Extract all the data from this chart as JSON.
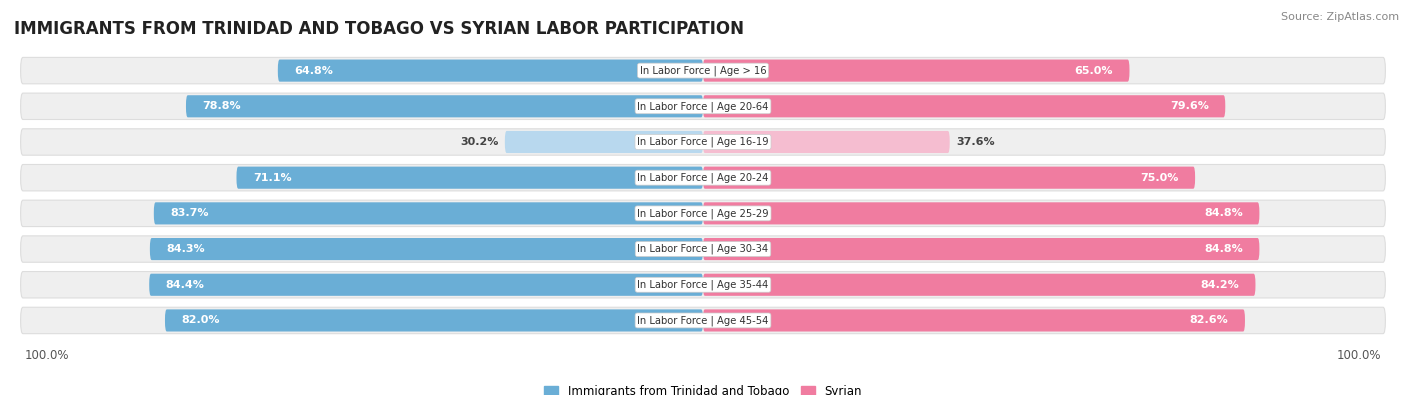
{
  "title": "IMMIGRANTS FROM TRINIDAD AND TOBAGO VS SYRIAN LABOR PARTICIPATION",
  "source": "Source: ZipAtlas.com",
  "categories": [
    "In Labor Force | Age > 16",
    "In Labor Force | Age 20-64",
    "In Labor Force | Age 16-19",
    "In Labor Force | Age 20-24",
    "In Labor Force | Age 25-29",
    "In Labor Force | Age 30-34",
    "In Labor Force | Age 35-44",
    "In Labor Force | Age 45-54"
  ],
  "trinidad_values": [
    64.8,
    78.8,
    30.2,
    71.1,
    83.7,
    84.3,
    84.4,
    82.0
  ],
  "syrian_values": [
    65.0,
    79.6,
    37.6,
    75.0,
    84.8,
    84.8,
    84.2,
    82.6
  ],
  "trinidad_color": "#6aaed6",
  "syrian_color": "#f07ca0",
  "trinidad_color_light": "#b8d8ee",
  "syrian_color_light": "#f5bdd0",
  "row_bg_color": "#efefef",
  "row_border_color": "#dddddd",
  "bar_height": 0.62,
  "max_value": 100.0,
  "legend_trinidad": "Immigrants from Trinidad and Tobago",
  "legend_syrian": "Syrian",
  "title_fontsize": 12,
  "label_fontsize": 8,
  "tick_fontsize": 8.5,
  "source_fontsize": 8
}
